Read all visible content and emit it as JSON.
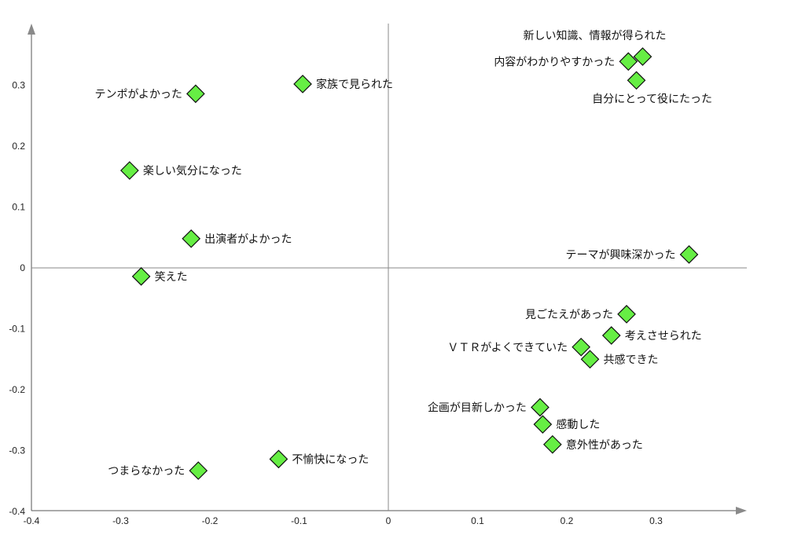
{
  "chart_data": {
    "type": "scatter",
    "title": "",
    "xlabel": "",
    "ylabel": "",
    "xlim": [
      -0.4,
      0.4
    ],
    "ylim": [
      -0.4,
      0.4
    ],
    "x_ticks": [
      -0.4,
      -0.3,
      -0.2,
      -0.1,
      0,
      0.1,
      0.2,
      0.3
    ],
    "y_ticks": [
      -0.4,
      -0.3,
      -0.2,
      -0.1,
      0,
      0.1,
      0.2,
      0.3
    ],
    "x_tick_labels": [
      "-0.4",
      "-0.3",
      "-0.2",
      "-0.1",
      "0",
      "0.1",
      "0.2",
      "0.3"
    ],
    "y_tick_labels": [
      "-0.4",
      "-0.3",
      "-0.2",
      "-0.1",
      "0",
      "0.1",
      "0.2",
      "0.3"
    ],
    "grid": false,
    "marker_color": "#66ee44",
    "points": [
      {
        "label": "新しい知識、情報が得られた",
        "x": 0.285,
        "y": 0.347,
        "label_side": "above"
      },
      {
        "label": "内容がわかりやすかった",
        "x": 0.269,
        "y": 0.339,
        "label_side": "left"
      },
      {
        "label": "自分にとって役にたった",
        "x": 0.278,
        "y": 0.308,
        "label_side": "below"
      },
      {
        "label": "家族で見られた",
        "x": -0.096,
        "y": 0.302,
        "label_side": "right"
      },
      {
        "label": "テンポがよかった",
        "x": -0.216,
        "y": 0.286,
        "label_side": "left"
      },
      {
        "label": "楽しい気分になった",
        "x": -0.29,
        "y": 0.16,
        "label_side": "right"
      },
      {
        "label": "出演者がよかった",
        "x": -0.221,
        "y": 0.048,
        "label_side": "right"
      },
      {
        "label": "テーマが興味深かった",
        "x": 0.337,
        "y": 0.022,
        "label_side": "left"
      },
      {
        "label": "笑えた",
        "x": -0.277,
        "y": -0.014,
        "label_side": "right"
      },
      {
        "label": "見ごたえがあった",
        "x": 0.267,
        "y": -0.076,
        "label_side": "left"
      },
      {
        "label": "考えさせられた",
        "x": 0.25,
        "y": -0.111,
        "label_side": "right"
      },
      {
        "label": "ＶＴＲがよくできていた",
        "x": 0.216,
        "y": -0.13,
        "label_side": "left"
      },
      {
        "label": "共感できた",
        "x": 0.226,
        "y": -0.15,
        "label_side": "right"
      },
      {
        "label": "企画が目新しかった",
        "x": 0.17,
        "y": -0.229,
        "label_side": "left"
      },
      {
        "label": "感動した",
        "x": 0.173,
        "y": -0.257,
        "label_side": "right"
      },
      {
        "label": "意外性があった",
        "x": 0.184,
        "y": -0.29,
        "label_side": "right"
      },
      {
        "label": "不愉快になった",
        "x": -0.123,
        "y": -0.314,
        "label_side": "right"
      },
      {
        "label": "つまらなかった",
        "x": -0.213,
        "y": -0.333,
        "label_side": "left"
      }
    ]
  }
}
